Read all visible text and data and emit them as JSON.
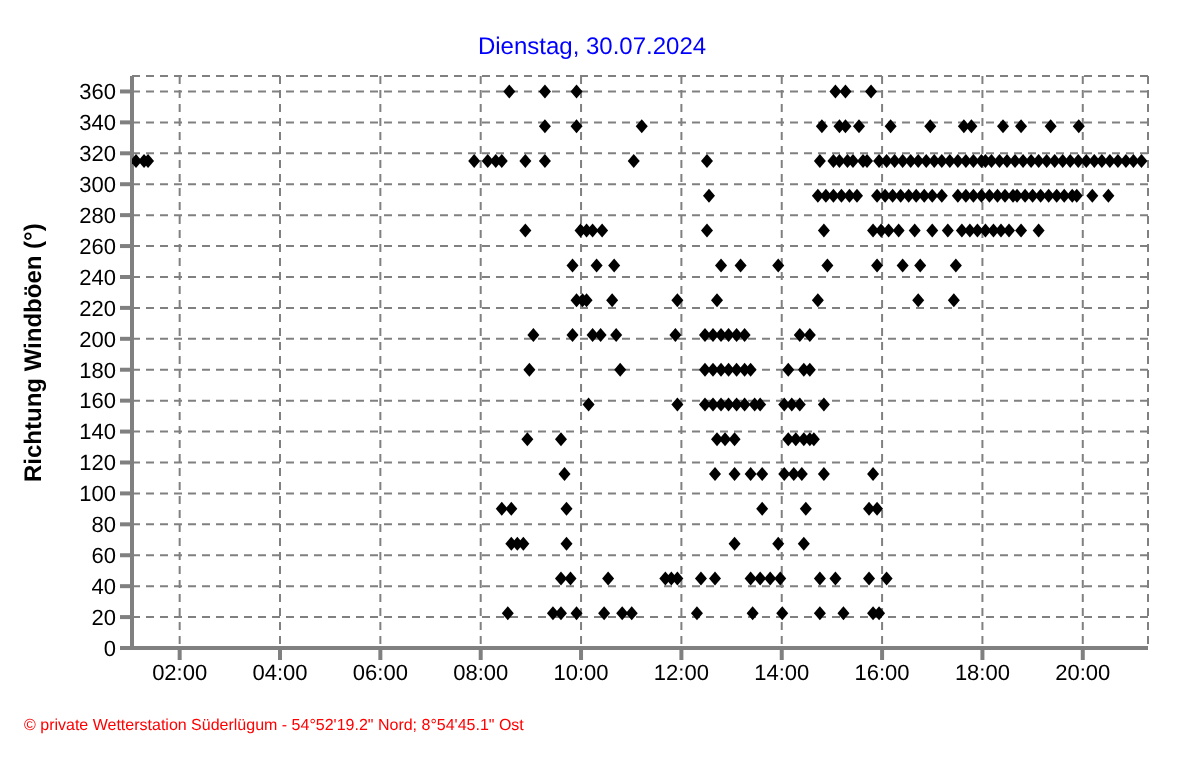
{
  "chart_data": {
    "type": "scatter",
    "title": "Dienstag, 30.07.2024",
    "ylabel": "Richtung Windböen (°)",
    "annotations": [
      "© private Wetterstation Süderlügum - 54°52'19.2\" Nord; 8°54'45.1\" Ost"
    ],
    "xlim": [
      1.05,
      21.3
    ],
    "xticks": [
      {
        "value": 2,
        "label": "02:00"
      },
      {
        "value": 4,
        "label": "04:00"
      },
      {
        "value": 6,
        "label": "06:00"
      },
      {
        "value": 8,
        "label": "08:00"
      },
      {
        "value": 10,
        "label": "10:00"
      },
      {
        "value": 12,
        "label": "12:00"
      },
      {
        "value": 14,
        "label": "14:00"
      },
      {
        "value": 16,
        "label": "16:00"
      },
      {
        "value": 18,
        "label": "18:00"
      },
      {
        "value": 20,
        "label": "20:00"
      }
    ],
    "ylim": [
      0,
      370
    ],
    "yticks": [
      0,
      20,
      40,
      60,
      80,
      100,
      120,
      140,
      160,
      180,
      200,
      220,
      240,
      260,
      280,
      300,
      320,
      340,
      360
    ],
    "grid": true,
    "marker": "diamond",
    "legend": false,
    "series": [
      {
        "color": "#000000",
        "x": [
          8.57,
          9.28,
          9.91,
          15.07,
          15.27,
          15.78
        ],
        "values": [
          360,
          360,
          360,
          360,
          360,
          360
        ]
      },
      {
        "color": "#000000",
        "x": [
          9.28,
          9.91,
          11.21,
          14.8,
          15.15,
          15.27,
          15.54,
          16.17,
          16.96,
          17.63,
          17.78,
          18.41,
          18.77,
          19.36,
          19.92
        ],
        "values": [
          337.5,
          337.5,
          337.5,
          337.5,
          337.5,
          337.5,
          337.5,
          337.5,
          337.5,
          337.5,
          337.5,
          337.5,
          337.5,
          337.5,
          337.5
        ]
      },
      {
        "color": "#000000",
        "x": [
          1.13,
          1.29,
          1.37,
          7.87,
          8.14,
          8.3,
          8.42,
          8.89,
          9.28,
          11.05,
          12.51,
          14.76,
          15.03,
          15.15,
          15.31,
          15.42,
          15.62,
          15.7,
          15.94,
          16.09,
          16.25,
          16.41,
          16.57,
          16.72,
          16.88,
          17.04,
          17.19,
          17.35,
          17.51,
          17.67,
          17.82,
          17.98,
          18.06,
          18.18,
          18.34,
          18.49,
          18.65,
          18.81,
          18.97,
          19.12,
          19.28,
          19.44,
          19.6,
          19.75,
          19.91,
          20.07,
          20.23,
          20.38,
          20.54,
          20.7,
          20.86,
          21.01,
          21.17
        ],
        "values": [
          315,
          315,
          315,
          315,
          315,
          315,
          315,
          315,
          315,
          315,
          315,
          315,
          315,
          315,
          315,
          315,
          315,
          315,
          315,
          315,
          315,
          315,
          315,
          315,
          315,
          315,
          315,
          315,
          315,
          315,
          315,
          315,
          315,
          315,
          315,
          315,
          315,
          315,
          315,
          315,
          315,
          315,
          315,
          315,
          315,
          315,
          315,
          315,
          315,
          315,
          315,
          315,
          315
        ]
      },
      {
        "color": "#000000",
        "x": [
          12.55,
          14.72,
          14.88,
          15.03,
          15.19,
          15.35,
          15.5,
          15.9,
          16.06,
          16.21,
          16.37,
          16.53,
          16.68,
          16.84,
          17,
          17.19,
          17.51,
          17.67,
          17.82,
          17.98,
          18.14,
          18.3,
          18.45,
          18.61,
          18.69,
          18.85,
          19,
          19.16,
          19.32,
          19.48,
          19.63,
          19.79,
          19.88,
          20.19,
          20.51
        ],
        "values": [
          292.5,
          292.5,
          292.5,
          292.5,
          292.5,
          292.5,
          292.5,
          292.5,
          292.5,
          292.5,
          292.5,
          292.5,
          292.5,
          292.5,
          292.5,
          292.5,
          292.5,
          292.5,
          292.5,
          292.5,
          292.5,
          292.5,
          292.5,
          292.5,
          292.5,
          292.5,
          292.5,
          292.5,
          292.5,
          292.5,
          292.5,
          292.5,
          292.5,
          292.5,
          292.5
        ]
      },
      {
        "color": "#000000",
        "x": [
          8.89,
          9.99,
          10.11,
          10.23,
          10.42,
          12.51,
          14.84,
          15.82,
          15.98,
          16.13,
          16.33,
          16.65,
          17,
          17.31,
          17.59,
          17.75,
          17.9,
          18.06,
          18.22,
          18.37,
          18.53,
          18.77,
          19.12
        ],
        "values": [
          270,
          270,
          270,
          270,
          270,
          270,
          270,
          270,
          270,
          270,
          270,
          270,
          270,
          270,
          270,
          270,
          270,
          270,
          270,
          270,
          270,
          270,
          270
        ]
      },
      {
        "color": "#000000",
        "x": [
          9.83,
          10.31,
          10.66,
          12.79,
          13.18,
          13.93,
          14.91,
          15.9,
          16.41,
          16.76,
          17.47
        ],
        "values": [
          247.5,
          247.5,
          247.5,
          247.5,
          247.5,
          247.5,
          247.5,
          247.5,
          247.5,
          247.5,
          247.5
        ]
      },
      {
        "color": "#000000",
        "x": [
          9.91,
          10.03,
          10.11,
          10.62,
          11.92,
          12.71,
          14.72,
          16.72,
          17.43
        ],
        "values": [
          225,
          225,
          225,
          225,
          225,
          225,
          225,
          225,
          225
        ]
      },
      {
        "color": "#000000",
        "x": [
          9.05,
          9.83,
          10.23,
          10.39,
          10.7,
          11.88,
          12.47,
          12.63,
          12.79,
          12.94,
          13.1,
          13.26,
          14.36,
          14.56
        ],
        "values": [
          202.5,
          202.5,
          202.5,
          202.5,
          202.5,
          202.5,
          202.5,
          202.5,
          202.5,
          202.5,
          202.5,
          202.5,
          202.5,
          202.5
        ]
      },
      {
        "color": "#000000",
        "x": [
          8.97,
          10.78,
          12.47,
          12.63,
          12.79,
          12.94,
          13.1,
          13.26,
          13.38,
          14.13,
          14.44,
          14.56
        ],
        "values": [
          180,
          180,
          180,
          180,
          180,
          180,
          180,
          180,
          180,
          180,
          180,
          180
        ]
      },
      {
        "color": "#000000",
        "x": [
          10.15,
          11.92,
          12.47,
          12.63,
          12.79,
          12.94,
          13.1,
          13.26,
          13.46,
          13.57,
          14.05,
          14.2,
          14.36,
          14.84
        ],
        "values": [
          157.5,
          157.5,
          157.5,
          157.5,
          157.5,
          157.5,
          157.5,
          157.5,
          157.5,
          157.5,
          157.5,
          157.5,
          157.5,
          157.5
        ]
      },
      {
        "color": "#000000",
        "x": [
          8.93,
          9.6,
          12.71,
          12.87,
          13.06,
          14.13,
          14.28,
          14.44,
          14.56,
          14.64
        ],
        "values": [
          135,
          135,
          135,
          135,
          135,
          135,
          135,
          135,
          135,
          135
        ]
      },
      {
        "color": "#000000",
        "x": [
          9.67,
          12.67,
          13.06,
          13.38,
          13.61,
          14.05,
          14.24,
          14.4,
          14.84,
          15.82
        ],
        "values": [
          112.5,
          112.5,
          112.5,
          112.5,
          112.5,
          112.5,
          112.5,
          112.5,
          112.5,
          112.5
        ]
      },
      {
        "color": "#000000",
        "x": [
          8.42,
          8.61,
          9.71,
          13.61,
          14.48,
          15.74,
          15.9
        ],
        "values": [
          90,
          90,
          90,
          90,
          90,
          90,
          90
        ]
      },
      {
        "color": "#000000",
        "x": [
          8.61,
          8.73,
          8.85,
          9.71,
          13.06,
          13.93,
          14.44
        ],
        "values": [
          67.5,
          67.5,
          67.5,
          67.5,
          67.5,
          67.5,
          67.5
        ]
      },
      {
        "color": "#000000",
        "x": [
          9.6,
          9.79,
          10.54,
          11.68,
          11.8,
          11.92,
          12.39,
          12.67,
          13.38,
          13.57,
          13.77,
          13.97,
          14.76,
          15.07,
          15.74,
          16.09
        ],
        "values": [
          45,
          45,
          45,
          45,
          45,
          45,
          45,
          45,
          45,
          45,
          45,
          45,
          45,
          45,
          45,
          45
        ]
      },
      {
        "color": "#000000",
        "x": [
          8.54,
          9.44,
          9.6,
          9.91,
          10.46,
          10.82,
          11.01,
          12.31,
          13.42,
          14.01,
          14.76,
          15.23,
          15.82,
          15.94
        ],
        "values": [
          22.5,
          22.5,
          22.5,
          22.5,
          22.5,
          22.5,
          22.5,
          22.5,
          22.5,
          22.5,
          22.5,
          22.5,
          22.5,
          22.5
        ]
      }
    ]
  }
}
